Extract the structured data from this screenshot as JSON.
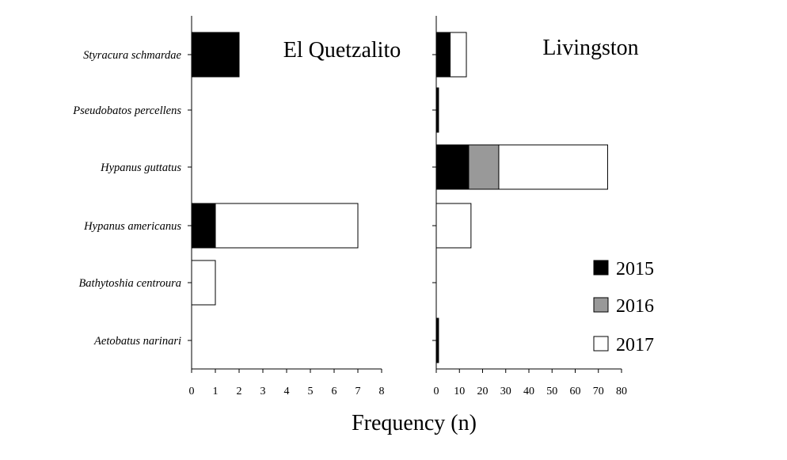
{
  "chart_data": {
    "type": "bar",
    "orientation": "horizontal",
    "stacked": true,
    "categories": [
      "Styracura schmardae",
      "Pseudobatos percellens",
      "Hypanus guttatus",
      "Hypanus americanus",
      "Bathytoshia centroura",
      "Aetobatus narinari"
    ],
    "xlabel": "Frequency (n)",
    "legend": {
      "placement": "bottom-right",
      "entries": [
        {
          "name": "2015",
          "color": "#000000"
        },
        {
          "name": "2016",
          "color": "#999999"
        },
        {
          "name": "2017",
          "color": "#ffffff"
        }
      ]
    },
    "panels": [
      {
        "title": "El Quetzalito",
        "xlim": [
          0,
          8
        ],
        "xticks": [
          "0",
          "1",
          "2",
          "3",
          "4",
          "5",
          "6",
          "7",
          "8"
        ],
        "series": [
          {
            "name": "2015",
            "values": [
              2,
              0,
              0,
              1,
              0,
              0
            ]
          },
          {
            "name": "2016",
            "values": [
              0,
              0,
              0,
              0,
              0,
              0
            ]
          },
          {
            "name": "2017",
            "values": [
              0,
              0,
              0,
              6,
              1,
              0
            ]
          }
        ]
      },
      {
        "title": "Livingston",
        "xlim": [
          0,
          80
        ],
        "xticks": [
          "0",
          "10",
          "20",
          "30",
          "40",
          "50",
          "60",
          "70",
          "80"
        ],
        "series": [
          {
            "name": "2015",
            "values": [
              6,
              1,
              14,
              0,
              0,
              1
            ]
          },
          {
            "name": "2016",
            "values": [
              0,
              0,
              13,
              0,
              0,
              0
            ]
          },
          {
            "name": "2017",
            "values": [
              7,
              0,
              47,
              15,
              0,
              0
            ]
          }
        ]
      }
    ]
  }
}
